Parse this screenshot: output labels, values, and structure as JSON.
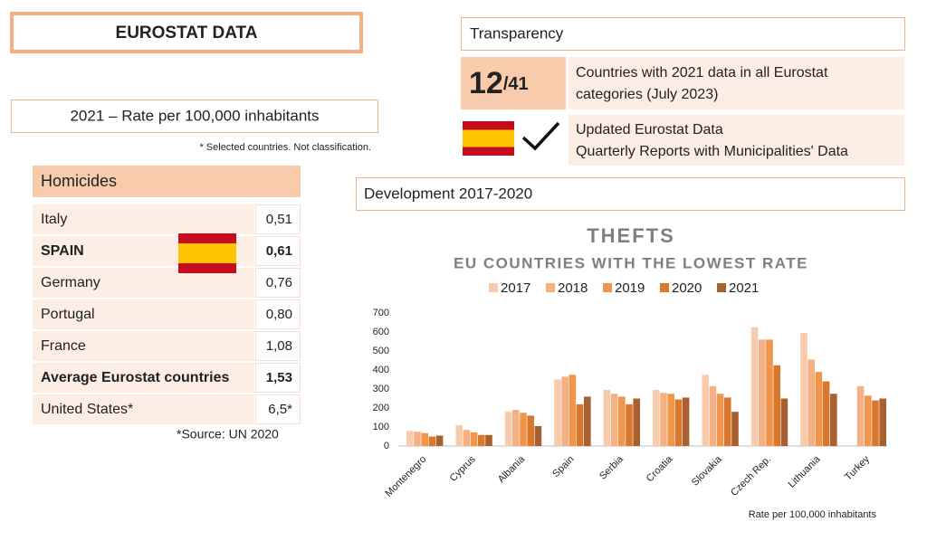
{
  "header": {
    "title": "EUROSTAT DATA"
  },
  "rate_box": {
    "title": "2021 – Rate per 100,000 inhabitants",
    "note": "* Selected countries. Not classification."
  },
  "homicides": {
    "title": "Homicides",
    "rows": [
      [
        "Italy",
        "0,51"
      ],
      [
        "SPAIN",
        "0,61"
      ],
      [
        "Germany",
        "0,76"
      ],
      [
        "Portugal",
        "0,80"
      ],
      [
        "France",
        "1,08"
      ],
      [
        "Average Eurostat countries",
        "1,53"
      ],
      [
        "United States*",
        "6,5*"
      ]
    ],
    "source": "*Source: UN 2020"
  },
  "transparency": {
    "title": "Transparency",
    "score": "12",
    "score_total": "/41",
    "score_text": [
      "Countries with 2021 data in all Eurostat",
      "categories (July 2023)"
    ],
    "update_text": [
      "Updated Eurostat Data",
      "Quarterly Reports with Municipalities' Data"
    ]
  },
  "development": {
    "title": "Development 2017-2020"
  },
  "chart_data": {
    "type": "bar",
    "title": "THEFTS",
    "subtitle": "EU COUNTRIES WITH THE LOWEST RATE",
    "footnote": "Rate per 100,000 inhabitants",
    "categories": [
      "Montenegro",
      "Cyprus",
      "Albania",
      "Spain",
      "Serbia",
      "Croatia",
      "Slovakia",
      "Czech Rep.",
      "Lithuania",
      "Turkey"
    ],
    "series": [
      {
        "name": "2017",
        "color": "#f8cbad",
        "values": [
          80,
          110,
          180,
          350,
          295,
          295,
          375,
          625,
          595,
          null
        ]
      },
      {
        "name": "2018",
        "color": "#f4b183",
        "values": [
          75,
          85,
          190,
          365,
          275,
          280,
          315,
          560,
          455,
          315
        ]
      },
      {
        "name": "2019",
        "color": "#f0954a",
        "values": [
          68,
          72,
          175,
          375,
          260,
          275,
          275,
          560,
          390,
          265
        ]
      },
      {
        "name": "2020",
        "color": "#d9782d",
        "values": [
          50,
          58,
          160,
          220,
          220,
          245,
          255,
          425,
          340,
          240
        ]
      },
      {
        "name": "2021",
        "color": "#a9602e",
        "values": [
          55,
          58,
          105,
          260,
          250,
          255,
          180,
          250,
          275,
          250
        ]
      }
    ],
    "ylim": [
      0,
      700
    ],
    "yticks": [
      0,
      100,
      200,
      300,
      400,
      500,
      600,
      700
    ],
    "grid": false
  }
}
